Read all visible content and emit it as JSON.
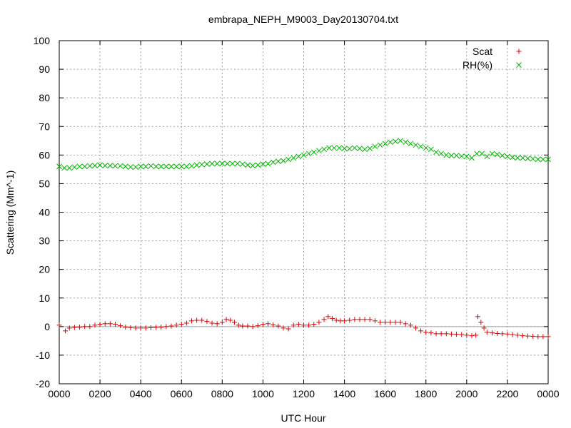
{
  "chart_data": {
    "type": "scatter",
    "title": "embrapa_NEPH_M9003_Day20130704.txt",
    "xlabel": "UTC Hour",
    "ylabel": "Scattering (Mm^-1)",
    "xlim": [
      0,
      24
    ],
    "ylim": [
      -20,
      100
    ],
    "x_ticks": [
      {
        "v": 0,
        "label": "0000"
      },
      {
        "v": 2,
        "label": "0200"
      },
      {
        "v": 4,
        "label": "0400"
      },
      {
        "v": 6,
        "label": "0600"
      },
      {
        "v": 8,
        "label": "0800"
      },
      {
        "v": 10,
        "label": "1000"
      },
      {
        "v": 12,
        "label": "1200"
      },
      {
        "v": 14,
        "label": "1400"
      },
      {
        "v": 16,
        "label": "1600"
      },
      {
        "v": 18,
        "label": "1800"
      },
      {
        "v": 20,
        "label": "2000"
      },
      {
        "v": 22,
        "label": "2200"
      },
      {
        "v": 24,
        "label": "0000"
      }
    ],
    "y_ticks": [
      {
        "v": -20,
        "label": "-20"
      },
      {
        "v": -10,
        "label": "-10"
      },
      {
        "v": 0,
        "label": "0"
      },
      {
        "v": 10,
        "label": "10"
      },
      {
        "v": 20,
        "label": "20"
      },
      {
        "v": 30,
        "label": "30"
      },
      {
        "v": 40,
        "label": "40"
      },
      {
        "v": 50,
        "label": "50"
      },
      {
        "v": 60,
        "label": "60"
      },
      {
        "v": 70,
        "label": "70"
      },
      {
        "v": 80,
        "label": "80"
      },
      {
        "v": 90,
        "label": "90"
      },
      {
        "v": 100,
        "label": "100"
      }
    ],
    "grid": true,
    "legend_position": "top-right",
    "zero_line": true,
    "series": [
      {
        "name": "Scat",
        "marker": "plus",
        "color": "#e00000",
        "points": [
          [
            0.0,
            0.5
          ],
          [
            0.3,
            -1.5
          ],
          [
            0.5,
            -0.5
          ],
          [
            0.75,
            -0.3
          ],
          [
            1.0,
            -0.2
          ],
          [
            1.25,
            0.0
          ],
          [
            1.5,
            0.0
          ],
          [
            1.75,
            0.5
          ],
          [
            2.0,
            0.8
          ],
          [
            2.25,
            1.0
          ],
          [
            2.5,
            1.0
          ],
          [
            2.75,
            0.8
          ],
          [
            3.0,
            0.3
          ],
          [
            3.25,
            -0.2
          ],
          [
            3.5,
            -0.4
          ],
          [
            3.75,
            -0.5
          ],
          [
            4.0,
            -0.5
          ],
          [
            4.25,
            -0.5
          ],
          [
            4.5,
            -0.4
          ],
          [
            4.75,
            -0.3
          ],
          [
            5.0,
            -0.2
          ],
          [
            5.25,
            0.0
          ],
          [
            5.5,
            0.2
          ],
          [
            5.75,
            0.5
          ],
          [
            6.0,
            0.8
          ],
          [
            6.25,
            1.2
          ],
          [
            6.5,
            2.0
          ],
          [
            6.75,
            2.2
          ],
          [
            7.0,
            2.2
          ],
          [
            7.25,
            1.8
          ],
          [
            7.5,
            1.2
          ],
          [
            7.75,
            1.0
          ],
          [
            8.0,
            1.5
          ],
          [
            8.2,
            2.5
          ],
          [
            8.4,
            2.2
          ],
          [
            8.6,
            1.5
          ],
          [
            8.8,
            0.5
          ],
          [
            9.0,
            0.2
          ],
          [
            9.25,
            0.2
          ],
          [
            9.5,
            0.0
          ],
          [
            9.75,
            0.3
          ],
          [
            10.0,
            0.8
          ],
          [
            10.25,
            1.0
          ],
          [
            10.5,
            0.6
          ],
          [
            10.75,
            0.2
          ],
          [
            11.0,
            -0.5
          ],
          [
            11.25,
            -0.8
          ],
          [
            11.5,
            0.5
          ],
          [
            11.75,
            0.8
          ],
          [
            12.0,
            0.5
          ],
          [
            12.25,
            0.5
          ],
          [
            12.5,
            0.8
          ],
          [
            12.75,
            1.5
          ],
          [
            13.0,
            2.5
          ],
          [
            13.2,
            3.5
          ],
          [
            13.4,
            2.8
          ],
          [
            13.6,
            2.2
          ],
          [
            13.8,
            2.0
          ],
          [
            14.0,
            2.0
          ],
          [
            14.25,
            2.2
          ],
          [
            14.5,
            2.5
          ],
          [
            14.75,
            2.5
          ],
          [
            15.0,
            2.5
          ],
          [
            15.25,
            2.5
          ],
          [
            15.5,
            2.0
          ],
          [
            15.75,
            1.5
          ],
          [
            16.0,
            1.5
          ],
          [
            16.25,
            1.5
          ],
          [
            16.5,
            1.5
          ],
          [
            16.75,
            1.5
          ],
          [
            17.0,
            1.0
          ],
          [
            17.25,
            0.5
          ],
          [
            17.5,
            -0.5
          ],
          [
            17.75,
            -1.5
          ],
          [
            18.0,
            -2.0
          ],
          [
            18.25,
            -2.2
          ],
          [
            18.5,
            -2.5
          ],
          [
            18.75,
            -2.5
          ],
          [
            19.0,
            -2.5
          ],
          [
            19.25,
            -2.6
          ],
          [
            19.5,
            -2.7
          ],
          [
            19.75,
            -2.8
          ],
          [
            20.0,
            -3.0
          ],
          [
            20.25,
            -3.2
          ],
          [
            20.45,
            -3.0
          ],
          [
            20.55,
            3.5
          ],
          [
            20.7,
            1.5
          ],
          [
            20.85,
            -0.5
          ],
          [
            21.0,
            -2.0
          ],
          [
            21.25,
            -2.2
          ],
          [
            21.5,
            -2.4
          ],
          [
            21.75,
            -2.5
          ],
          [
            22.0,
            -2.6
          ],
          [
            22.25,
            -2.8
          ],
          [
            22.5,
            -3.0
          ],
          [
            22.75,
            -3.2
          ],
          [
            23.0,
            -3.3
          ],
          [
            23.25,
            -3.4
          ],
          [
            23.5,
            -3.5
          ],
          [
            23.75,
            -3.5
          ],
          [
            24.0,
            -3.5
          ]
        ]
      },
      {
        "name": "RH(%)",
        "marker": "cross",
        "color": "#00b000",
        "points": [
          [
            0.0,
            56.0
          ],
          [
            0.25,
            55.5
          ],
          [
            0.5,
            55.5
          ],
          [
            0.75,
            55.8
          ],
          [
            1.0,
            56.0
          ],
          [
            1.25,
            56.0
          ],
          [
            1.5,
            56.2
          ],
          [
            1.75,
            56.3
          ],
          [
            2.0,
            56.5
          ],
          [
            2.25,
            56.3
          ],
          [
            2.5,
            56.3
          ],
          [
            2.75,
            56.2
          ],
          [
            3.0,
            56.2
          ],
          [
            3.25,
            56.0
          ],
          [
            3.5,
            55.8
          ],
          [
            3.75,
            55.8
          ],
          [
            4.0,
            56.0
          ],
          [
            4.25,
            56.0
          ],
          [
            4.5,
            56.2
          ],
          [
            4.75,
            56.0
          ],
          [
            5.0,
            56.0
          ],
          [
            5.25,
            56.0
          ],
          [
            5.5,
            56.0
          ],
          [
            5.75,
            56.0
          ],
          [
            6.0,
            56.0
          ],
          [
            6.25,
            56.0
          ],
          [
            6.5,
            56.2
          ],
          [
            6.75,
            56.5
          ],
          [
            7.0,
            56.7
          ],
          [
            7.25,
            56.8
          ],
          [
            7.5,
            57.0
          ],
          [
            7.75,
            57.0
          ],
          [
            8.0,
            57.0
          ],
          [
            8.25,
            57.0
          ],
          [
            8.5,
            57.0
          ],
          [
            8.75,
            57.0
          ],
          [
            9.0,
            56.8
          ],
          [
            9.25,
            56.5
          ],
          [
            9.5,
            56.3
          ],
          [
            9.75,
            56.5
          ],
          [
            10.0,
            56.8
          ],
          [
            10.25,
            57.0
          ],
          [
            10.5,
            57.5
          ],
          [
            10.75,
            57.8
          ],
          [
            11.0,
            58.0
          ],
          [
            11.25,
            58.5
          ],
          [
            11.5,
            59.0
          ],
          [
            11.75,
            59.5
          ],
          [
            12.0,
            60.0
          ],
          [
            12.25,
            60.5
          ],
          [
            12.5,
            61.0
          ],
          [
            12.75,
            61.5
          ],
          [
            13.0,
            62.0
          ],
          [
            13.25,
            62.5
          ],
          [
            13.5,
            62.5
          ],
          [
            13.75,
            62.5
          ],
          [
            14.0,
            62.3
          ],
          [
            14.25,
            62.2
          ],
          [
            14.5,
            62.5
          ],
          [
            14.75,
            62.3
          ],
          [
            15.0,
            62.0
          ],
          [
            15.25,
            62.3
          ],
          [
            15.5,
            63.0
          ],
          [
            15.75,
            63.5
          ],
          [
            16.0,
            64.0
          ],
          [
            16.25,
            64.5
          ],
          [
            16.5,
            64.8
          ],
          [
            16.75,
            65.0
          ],
          [
            17.0,
            64.5
          ],
          [
            17.25,
            64.0
          ],
          [
            17.5,
            63.5
          ],
          [
            17.75,
            63.0
          ],
          [
            18.0,
            62.5
          ],
          [
            18.25,
            62.0
          ],
          [
            18.5,
            61.0
          ],
          [
            18.75,
            60.5
          ],
          [
            19.0,
            60.0
          ],
          [
            19.25,
            59.8
          ],
          [
            19.5,
            59.8
          ],
          [
            19.75,
            59.6
          ],
          [
            20.0,
            59.5
          ],
          [
            20.25,
            59.0
          ],
          [
            20.5,
            60.5
          ],
          [
            20.75,
            60.5
          ],
          [
            21.0,
            59.5
          ],
          [
            21.25,
            60.5
          ],
          [
            21.5,
            60.2
          ],
          [
            21.75,
            59.8
          ],
          [
            22.0,
            59.5
          ],
          [
            22.25,
            59.2
          ],
          [
            22.5,
            59.0
          ],
          [
            22.75,
            59.0
          ],
          [
            23.0,
            58.8
          ],
          [
            23.25,
            58.7
          ],
          [
            23.5,
            58.5
          ],
          [
            23.75,
            58.5
          ],
          [
            24.0,
            58.5
          ]
        ]
      }
    ]
  }
}
